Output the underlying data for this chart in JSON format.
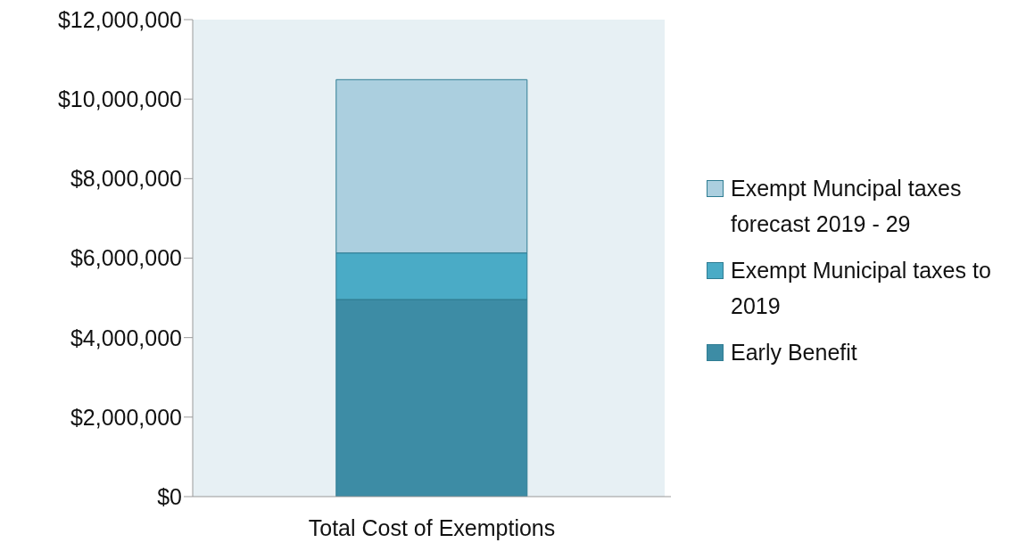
{
  "chart_data": {
    "type": "bar",
    "stacked": true,
    "categories": [
      "Total Cost of Exemptions"
    ],
    "series": [
      {
        "name": "Early Benefit",
        "color": "#3d8ca5",
        "values": [
          4960000
        ]
      },
      {
        "name": "Exempt Municipal taxes to 2019",
        "color": "#4aabc6",
        "values": [
          1170000
        ]
      },
      {
        "name": "Exempt Muncipal taxes forecast 2019 - 29",
        "color": "#abcfdf",
        "values": [
          4360000
        ]
      }
    ],
    "ylim": [
      0,
      12000000
    ],
    "yticks": [
      {
        "value": 0,
        "label": "$0"
      },
      {
        "value": 2000000,
        "label": "$2,000,000"
      },
      {
        "value": 4000000,
        "label": "$4,000,000"
      },
      {
        "value": 6000000,
        "label": "$6,000,000"
      },
      {
        "value": 8000000,
        "label": "$8,000,000"
      },
      {
        "value": 10000000,
        "label": "$10,000,000"
      },
      {
        "value": 12000000,
        "label": "$12,000,000"
      }
    ],
    "grid": false,
    "legend": "right"
  }
}
